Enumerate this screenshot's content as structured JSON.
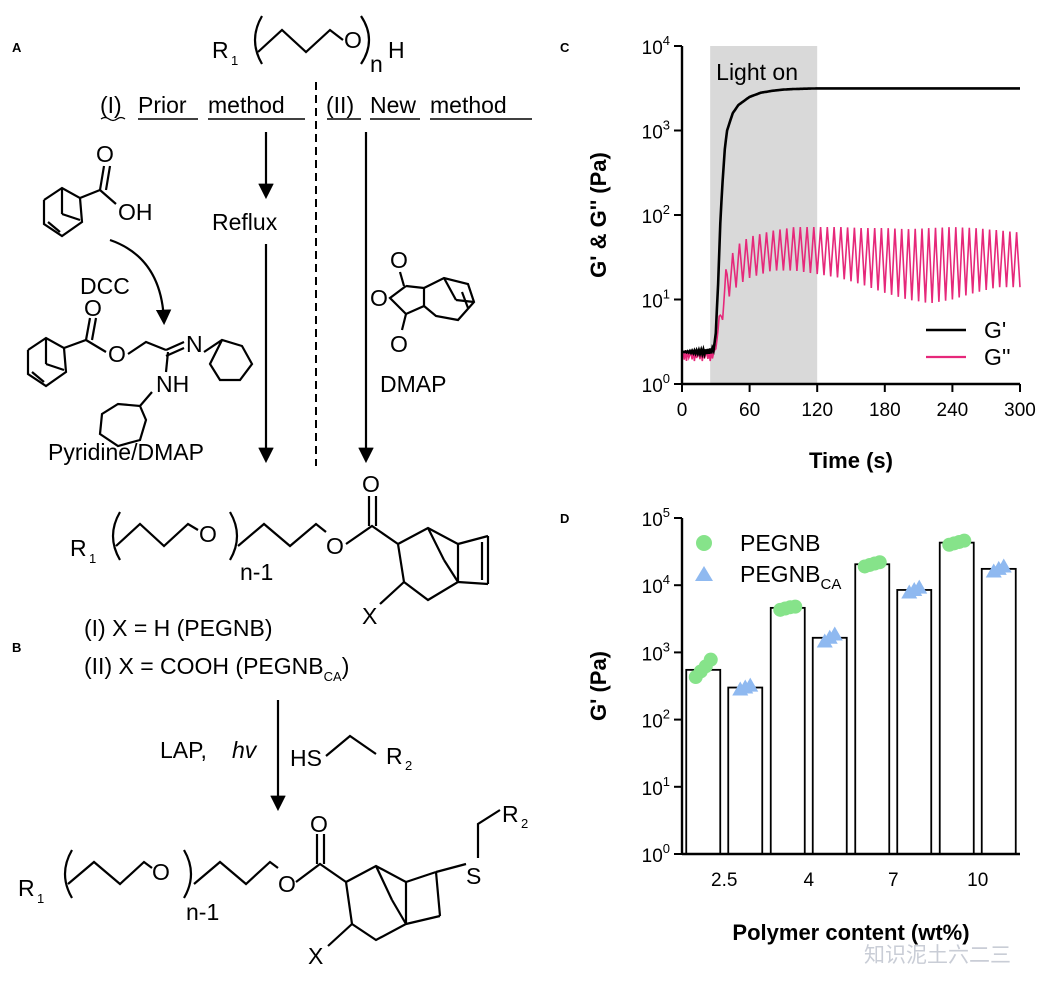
{
  "panels": {
    "a": "A",
    "b": "B",
    "c": "C",
    "d": "D"
  },
  "scheme_a": {
    "r1": "R",
    "r1_sub": "1",
    "n": "n",
    "h": "H",
    "o": "O",
    "prior_num": "(I)",
    "prior_word1": "Prior",
    "prior_word2": "method",
    "new_num": "(II)",
    "new_word1": "New",
    "new_word2": "method",
    "reflux": "Reflux",
    "oh": "OH",
    "dcc": "DCC",
    "nh": "NH",
    "n_atom": "N",
    "pyridine": "Pyridine/DMAP",
    "dmap": "DMAP"
  },
  "scheme_b": {
    "n_minus_1": "n-1",
    "x": "X",
    "line1": "(I) X = H (PEGNB)",
    "line2_pre": "(II) X = COOH (PEGNB",
    "line2_sub": "CA",
    "line2_post": ")",
    "lap": "LAP,",
    "hv": "hv",
    "hs": "HS",
    "s": "S",
    "r2": "R",
    "r2_sub": "2"
  },
  "watermark": "知识泥土六二三",
  "chart_data": [
    {
      "type": "line",
      "panel": "C",
      "xlabel": "Time (s)",
      "ylabel": "G' & G'' (Pa)",
      "xlim": [
        0,
        300
      ],
      "ylim": [
        1,
        10000
      ],
      "yscale": "log",
      "xticks": [
        0,
        60,
        120,
        180,
        240,
        300
      ],
      "yticks": [
        {
          "base": "10",
          "exp": "0"
        },
        {
          "base": "10",
          "exp": "1"
        },
        {
          "base": "10",
          "exp": "2"
        },
        {
          "base": "10",
          "exp": "3"
        },
        {
          "base": "10",
          "exp": "4"
        }
      ],
      "annotation": "Light on",
      "shaded_region": [
        25,
        120
      ],
      "legend_position": "bottom-right",
      "series": [
        {
          "name": "G'",
          "color": "#000000",
          "x": [
            0,
            10,
            20,
            28,
            30,
            32,
            34,
            36,
            38,
            40,
            45,
            50,
            60,
            70,
            80,
            90,
            100,
            120,
            150,
            180,
            240,
            300
          ],
          "values": [
            2.4,
            2.4,
            2.4,
            2.5,
            4,
            15,
            80,
            250,
            600,
            1000,
            1600,
            2000,
            2500,
            2800,
            2950,
            3050,
            3100,
            3150,
            3150,
            3150,
            3150,
            3150
          ]
        },
        {
          "name": "G''",
          "color": "#e6287a",
          "x": [
            0,
            10,
            20,
            28,
            30,
            35,
            40,
            50,
            60,
            80,
            100,
            120,
            140,
            160,
            180,
            200,
            220,
            240,
            260,
            280,
            300
          ],
          "values": [
            2.2,
            2.2,
            2.2,
            2.3,
            3,
            8,
            20,
            30,
            38,
            45,
            50,
            48,
            45,
            42,
            40,
            38,
            38,
            36,
            34,
            30,
            30
          ],
          "oscillation_low": [
            2.2,
            2.2,
            2.2,
            2.3,
            2.6,
            5,
            10,
            15,
            18,
            22,
            22,
            20,
            18,
            15,
            12,
            10,
            9,
            10,
            12,
            14,
            14
          ],
          "oscillation_high": [
            2.2,
            2.2,
            2.2,
            2.3,
            3.2,
            10,
            28,
            45,
            55,
            65,
            72,
            72,
            72,
            70,
            70,
            68,
            70,
            72,
            70,
            66,
            62
          ]
        }
      ]
    },
    {
      "type": "bar",
      "panel": "D",
      "xlabel": "Polymer content (wt%)",
      "ylabel": "G' (Pa)",
      "yscale": "log",
      "ylim": [
        1,
        100000
      ],
      "categories": [
        "2.5",
        "4",
        "7",
        "10"
      ],
      "yticks": [
        {
          "base": "10",
          "exp": "0"
        },
        {
          "base": "10",
          "exp": "1"
        },
        {
          "base": "10",
          "exp": "2"
        },
        {
          "base": "10",
          "exp": "3"
        },
        {
          "base": "10",
          "exp": "4"
        },
        {
          "base": "10",
          "exp": "5"
        }
      ],
      "legend_position": "top-left",
      "series": [
        {
          "name": "PEGNB",
          "color": "#86e38a",
          "marker": "circle",
          "values": [
            550,
            4600,
            20500,
            43000
          ],
          "points": [
            [
              430,
              520,
              620,
              780
            ],
            [
              4300,
              4500,
              4700,
              4800
            ],
            [
              19000,
              20000,
              21000,
              22000
            ],
            [
              40000,
              42000,
              44000,
              46000
            ]
          ]
        },
        {
          "name": "PEGNB",
          "name_sub": "CA",
          "color": "#8fb9f0",
          "marker": "triangle",
          "values": [
            300,
            1650,
            8500,
            17500
          ],
          "points": [
            [
              280,
              300,
              320
            ],
            [
              1450,
              1650,
              1850
            ],
            [
              7800,
              8500,
              9200
            ],
            [
              16000,
              17500,
              19000
            ]
          ]
        }
      ]
    }
  ]
}
